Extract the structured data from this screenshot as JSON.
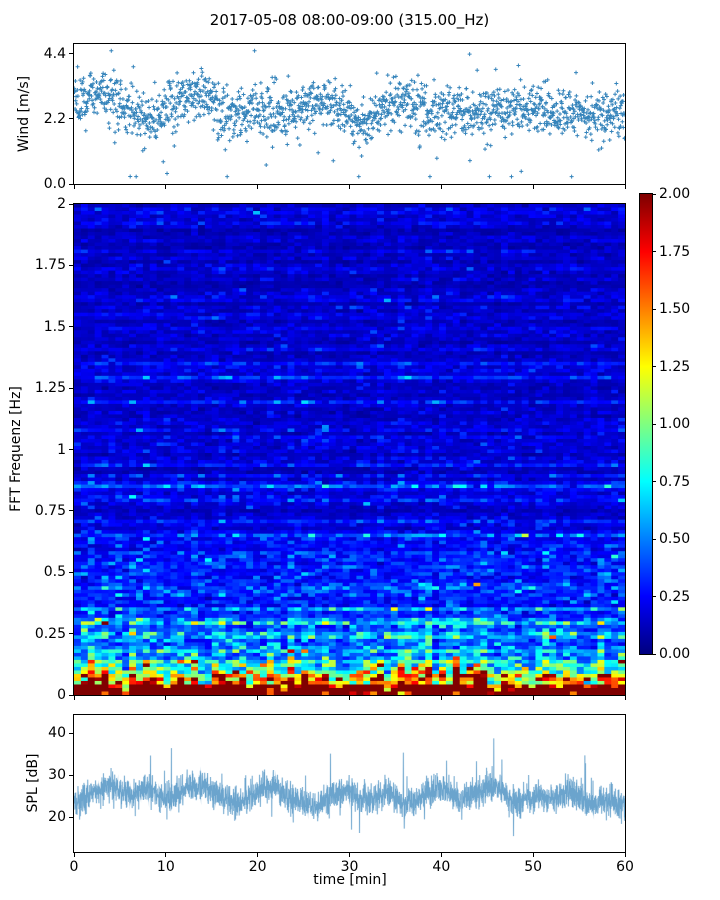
{
  "figure": {
    "title": "2017-05-08 08:00-09:00 (315.00_Hz)",
    "background": "#ffffff",
    "accent_color": "#1f77b4",
    "spine_color": "#000000"
  },
  "chart_data": [
    {
      "id": "wind",
      "type": "scatter",
      "ylabel": "Wind [m/s]",
      "xlim": [
        0,
        60
      ],
      "ylim": [
        0,
        4.73
      ],
      "yticks": [
        "0.0",
        "2.2",
        "4.4"
      ],
      "ytick_values": [
        0,
        2.2,
        4.4
      ],
      "xtick_values": [
        0,
        10,
        20,
        30,
        40,
        50,
        60
      ],
      "marker": "+",
      "color": "#1f77b4",
      "n_points": 1750,
      "noise_sigma": 0.42,
      "low_outlier_prob": 0.015,
      "trend_step_min": 2,
      "trend": [
        2.7,
        3.0,
        3.1,
        2.6,
        2.15,
        2.6,
        2.95,
        3.1,
        2.5,
        2.35,
        2.6,
        2.25,
        2.45,
        2.7,
        2.75,
        2.3,
        2.1,
        2.55,
        2.85,
        2.6,
        2.4,
        2.5,
        2.35,
        2.6,
        2.45,
        2.65,
        2.4,
        2.55,
        2.25,
        2.4,
        2.3
      ],
      "seed": 77
    },
    {
      "id": "spectrogram",
      "type": "heatmap",
      "ylabel": "FFT Frequenz [Hz]",
      "xlim": [
        0,
        60
      ],
      "ylim": [
        0,
        2
      ],
      "yticks": [
        "2",
        "1.75",
        "1.5",
        "1.25",
        "1",
        "0.75",
        "0.5",
        "0.25",
        "0"
      ],
      "ytick_values": [
        2,
        1.75,
        1.5,
        1.25,
        1,
        0.75,
        0.5,
        0.25,
        0
      ],
      "xtick_values": [
        0,
        10,
        20,
        30,
        40,
        50,
        60
      ],
      "colormap": "jet",
      "clim": [
        0,
        2
      ],
      "grid": {
        "cols": 80,
        "rows": 140
      },
      "freq_profile": [
        {
          "f": 0.0,
          "v": 2.0
        },
        {
          "f": 0.02,
          "v": 1.9
        },
        {
          "f": 0.05,
          "v": 1.35
        },
        {
          "f": 0.09,
          "v": 0.95
        },
        {
          "f": 0.14,
          "v": 0.68
        },
        {
          "f": 0.2,
          "v": 0.52
        },
        {
          "f": 0.3,
          "v": 0.38
        },
        {
          "f": 0.45,
          "v": 0.3
        },
        {
          "f": 0.7,
          "v": 0.22
        },
        {
          "f": 1.0,
          "v": 0.17
        },
        {
          "f": 1.5,
          "v": 0.14
        },
        {
          "f": 2.0,
          "v": 0.13
        }
      ],
      "noise": {
        "row_sigma": 0.22,
        "cell_sigma": 0.32,
        "col_sigma": 0.18,
        "bright_row_prob": 0.05,
        "bright_row_gain": 1.9,
        "seed": 1234
      }
    },
    {
      "id": "spl",
      "type": "line",
      "ylabel": "SPL [dB]",
      "xlabel": "time [min]",
      "xlim": [
        0,
        60
      ],
      "ylim": [
        11.7,
        44.3
      ],
      "yticks": [
        "20",
        "30",
        "40"
      ],
      "ytick_values": [
        20,
        30,
        40
      ],
      "xticks": [
        "0",
        "10",
        "20",
        "30",
        "40",
        "50",
        "60"
      ],
      "xtick_values": [
        0,
        10,
        20,
        30,
        40,
        50,
        60
      ],
      "color": "#1f77b4",
      "n_points": 3600,
      "noise_sigma": 1.7,
      "spike_prob": 0.005,
      "trend_step_min": 2,
      "trend": [
        22.5,
        26,
        27.5,
        25,
        27,
        24.5,
        26.5,
        28,
        25,
        23,
        26,
        27.5,
        24,
        22,
        25,
        26.5,
        23.5,
        26,
        23,
        25,
        26.5,
        24,
        26,
        27.5,
        23,
        25,
        24,
        26,
        23,
        24,
        23
      ],
      "seed": 55
    }
  ],
  "colorbar": {
    "colormap": "jet",
    "min": 0,
    "max": 2,
    "ticks": [
      "2.00",
      "1.75",
      "1.50",
      "1.25",
      "1.00",
      "0.75",
      "0.50",
      "0.25",
      "0.00"
    ],
    "tick_values": [
      2,
      1.75,
      1.5,
      1.25,
      1,
      0.75,
      0.5,
      0.25,
      0
    ]
  }
}
